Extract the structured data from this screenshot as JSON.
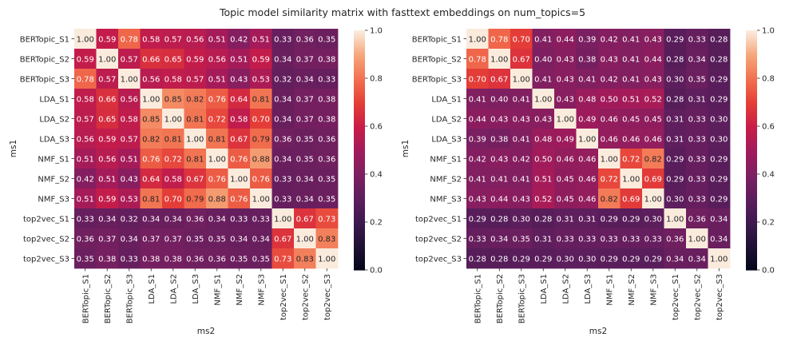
{
  "figure": {
    "title": "Topic model similarity matrix with fasttext embeddings on  num_topics=5"
  },
  "colorbar": {
    "ticks": [
      "0.0",
      "0.2",
      "0.4",
      "0.6",
      "0.8",
      "1.0"
    ],
    "colormap": "rocket"
  },
  "chart_data": [
    {
      "type": "heatmap",
      "xlabel": "ms2",
      "ylabel": "ms1",
      "vmin": 0,
      "vmax": 1,
      "annotate": true,
      "rows": [
        "BERTopic_S1",
        "BERTopic_S2",
        "BERTopic_S3",
        "LDA_S1",
        "LDA_S2",
        "LDA_S3",
        "NMF_S1",
        "NMF_S2",
        "NMF_S3",
        "top2vec_S1",
        "top2vec_S2",
        "top2vec_S3"
      ],
      "cols": [
        "BERTopic_S1",
        "BERTopic_S2",
        "BERTopic_S3",
        "LDA_S1",
        "LDA_S2",
        "LDA_S3",
        "NMF_S1",
        "NMF_S2",
        "NMF_S3",
        "top2vec_S1",
        "top2vec_S2",
        "top2vec_S3"
      ],
      "values": [
        [
          1.0,
          0.59,
          0.78,
          0.58,
          0.57,
          0.56,
          0.51,
          0.42,
          0.51,
          0.33,
          0.36,
          0.35
        ],
        [
          0.59,
          1.0,
          0.57,
          0.66,
          0.65,
          0.59,
          0.56,
          0.51,
          0.59,
          0.34,
          0.37,
          0.38
        ],
        [
          0.78,
          0.57,
          1.0,
          0.56,
          0.58,
          0.57,
          0.51,
          0.43,
          0.53,
          0.32,
          0.34,
          0.33
        ],
        [
          0.58,
          0.66,
          0.56,
          1.0,
          0.85,
          0.82,
          0.76,
          0.64,
          0.81,
          0.34,
          0.37,
          0.38
        ],
        [
          0.57,
          0.65,
          0.58,
          0.85,
          1.0,
          0.81,
          0.72,
          0.58,
          0.7,
          0.34,
          0.37,
          0.38
        ],
        [
          0.56,
          0.59,
          0.57,
          0.82,
          0.81,
          1.0,
          0.81,
          0.67,
          0.79,
          0.36,
          0.35,
          0.36
        ],
        [
          0.51,
          0.56,
          0.51,
          0.76,
          0.72,
          0.81,
          1.0,
          0.76,
          0.88,
          0.34,
          0.35,
          0.36
        ],
        [
          0.42,
          0.51,
          0.43,
          0.64,
          0.58,
          0.67,
          0.76,
          1.0,
          0.76,
          0.33,
          0.34,
          0.35
        ],
        [
          0.51,
          0.59,
          0.53,
          0.81,
          0.7,
          0.79,
          0.88,
          0.76,
          1.0,
          0.33,
          0.34,
          0.35
        ],
        [
          0.33,
          0.34,
          0.32,
          0.34,
          0.34,
          0.36,
          0.34,
          0.33,
          0.33,
          1.0,
          0.67,
          0.73
        ],
        [
          0.36,
          0.37,
          0.34,
          0.37,
          0.37,
          0.35,
          0.35,
          0.34,
          0.34,
          0.67,
          1.0,
          0.83
        ],
        [
          0.35,
          0.38,
          0.33,
          0.38,
          0.38,
          0.36,
          0.36,
          0.35,
          0.35,
          0.73,
          0.83,
          1.0
        ]
      ]
    },
    {
      "type": "heatmap",
      "xlabel": "ms2",
      "ylabel": "ms1",
      "vmin": 0,
      "vmax": 1,
      "annotate": true,
      "rows": [
        "BERTopic_S1",
        "BERTopic_S2",
        "BERTopic_S3",
        "LDA_S1",
        "LDA_S2",
        "LDA_S3",
        "NMF_S1",
        "NMF_S2",
        "NMF_S3",
        "top2vec_S1",
        "top2vec_S2",
        "top2vec_S3"
      ],
      "cols": [
        "BERTopic_S1",
        "BERTopic_S2",
        "BERTopic_S3",
        "LDA_S1",
        "LDA_S2",
        "LDA_S3",
        "NMF_S1",
        "NMF_S2",
        "NMF_S3",
        "top2vec_S1",
        "top2vec_S2",
        "top2vec_S3"
      ],
      "values": [
        [
          1.0,
          0.78,
          0.7,
          0.41,
          0.44,
          0.39,
          0.42,
          0.41,
          0.43,
          0.29,
          0.33,
          0.28
        ],
        [
          0.78,
          1.0,
          0.67,
          0.4,
          0.43,
          0.38,
          0.43,
          0.41,
          0.44,
          0.28,
          0.34,
          0.28
        ],
        [
          0.7,
          0.67,
          1.0,
          0.41,
          0.43,
          0.41,
          0.42,
          0.41,
          0.43,
          0.3,
          0.35,
          0.29
        ],
        [
          0.41,
          0.4,
          0.41,
          1.0,
          0.43,
          0.48,
          0.5,
          0.51,
          0.52,
          0.28,
          0.31,
          0.29
        ],
        [
          0.44,
          0.43,
          0.43,
          0.43,
          1.0,
          0.49,
          0.46,
          0.45,
          0.45,
          0.31,
          0.33,
          0.3
        ],
        [
          0.39,
          0.38,
          0.41,
          0.48,
          0.49,
          1.0,
          0.46,
          0.46,
          0.46,
          0.31,
          0.33,
          0.3
        ],
        [
          0.42,
          0.43,
          0.42,
          0.5,
          0.46,
          0.46,
          1.0,
          0.72,
          0.82,
          0.29,
          0.33,
          0.29
        ],
        [
          0.41,
          0.41,
          0.41,
          0.51,
          0.45,
          0.46,
          0.72,
          1.0,
          0.69,
          0.29,
          0.33,
          0.29
        ],
        [
          0.43,
          0.44,
          0.43,
          0.52,
          0.45,
          0.46,
          0.82,
          0.69,
          1.0,
          0.3,
          0.33,
          0.29
        ],
        [
          0.29,
          0.28,
          0.3,
          0.28,
          0.31,
          0.31,
          0.29,
          0.29,
          0.3,
          1.0,
          0.36,
          0.34
        ],
        [
          0.33,
          0.34,
          0.35,
          0.31,
          0.33,
          0.33,
          0.33,
          0.33,
          0.33,
          0.36,
          1.0,
          0.34
        ],
        [
          0.28,
          0.28,
          0.29,
          0.29,
          0.3,
          0.3,
          0.29,
          0.29,
          0.29,
          0.34,
          0.34,
          1.0
        ]
      ]
    }
  ]
}
